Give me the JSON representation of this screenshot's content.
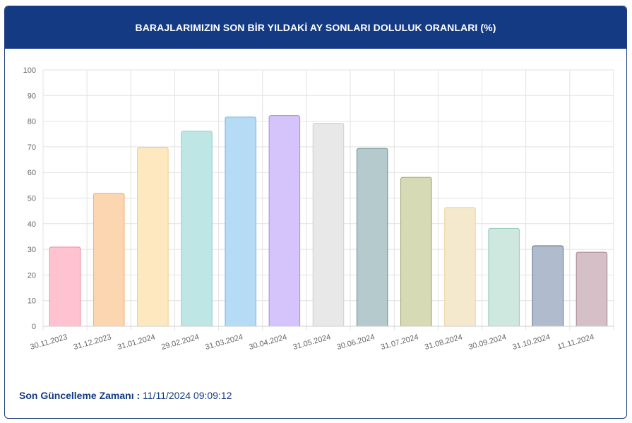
{
  "header": {
    "title": "BARAJLARIMIZIN SON BİR YILDAKİ AY SONLARI DOLULUK ORANLARI (%)"
  },
  "footer": {
    "label": "Son Güncelleme Zamanı :",
    "value": "11/11/2024 09:09:12"
  },
  "chart_data": {
    "type": "bar",
    "title": "BARAJLARIMIZIN SON BİR YILDAKİ AY SONLARI DOLULUK ORANLARI (%)",
    "categories": [
      "30.11.2023",
      "31.12.2023",
      "31.01.2024",
      "29.02.2024",
      "31.03.2024",
      "30.04.2024",
      "31.05.2024",
      "30.06.2024",
      "31.07.2024",
      "31.08.2024",
      "30.09.2024",
      "31.10.2024",
      "11.11.2024"
    ],
    "values": [
      30.9,
      51.9,
      69.8,
      76.1,
      81.6,
      82.2,
      79.2,
      69.4,
      58.1,
      46.3,
      38.2,
      31.4,
      28.9
    ],
    "ylim": [
      0,
      100
    ],
    "yticks": [
      0,
      10,
      20,
      30,
      40,
      50,
      60,
      70,
      80,
      90,
      100
    ],
    "grid": true,
    "legend": "none",
    "colors": {
      "fill": [
        "#ffc2d0",
        "#fcd6b0",
        "#fde8bf",
        "#bde6e4",
        "#b5dbf5",
        "#d5c4fb",
        "#e8e8e9",
        "#b5cacc",
        "#d6dab5",
        "#f5e9cd",
        "#cee7df",
        "#b0bccd",
        "#d6c0c7"
      ],
      "stroke": [
        "#f0899f",
        "#f0b07c",
        "#f2cc82",
        "#8ccfca",
        "#73b2dd",
        "#a88ae8",
        "#cfcfd2",
        "#6f8c90",
        "#9ea36c",
        "#ecd098",
        "#93c8b6",
        "#5a6c86",
        "#a7848f"
      ]
    }
  }
}
